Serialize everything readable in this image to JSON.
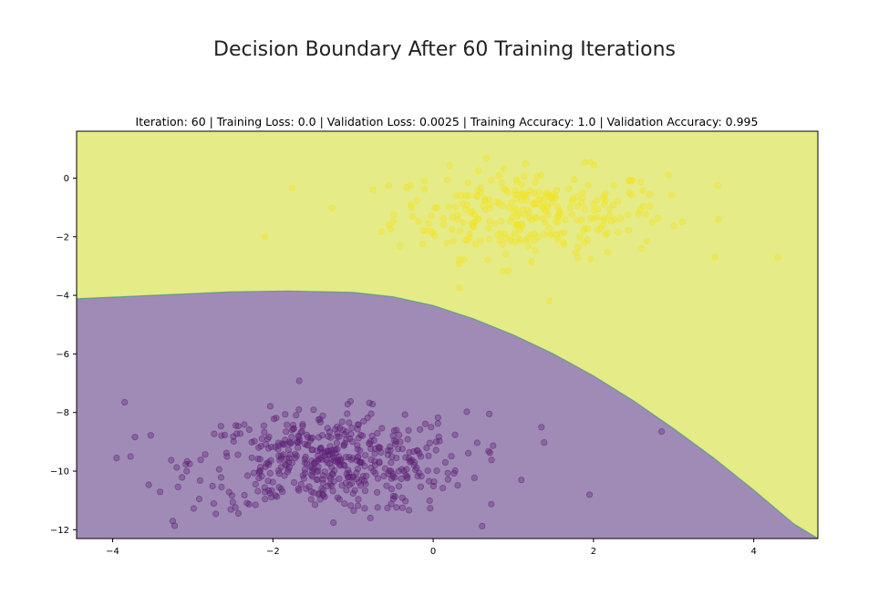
{
  "suptitle": "Decision Boundary After 60 Training Iterations",
  "chart_data": {
    "type": "scatter",
    "title": "Iteration: 60 | Training Loss: 0.0 | Validation Loss: 0.0025 | Training Accuracy: 1.0 | Validation Accuracy: 0.995",
    "xlabel": "",
    "ylabel": "",
    "xlim": [
      -4.45,
      4.8
    ],
    "ylim": [
      -12.3,
      1.6
    ],
    "x_ticks": [
      -4,
      -2,
      0,
      2,
      4
    ],
    "x_tick_labels": [
      "−4",
      "−2",
      "0",
      "2",
      "4"
    ],
    "y_ticks": [
      0,
      -2,
      -4,
      -6,
      -8,
      -10,
      -12
    ],
    "y_tick_labels": [
      "0",
      "−2",
      "−4",
      "−6",
      "−8",
      "−10",
      "−12"
    ],
    "grid": false,
    "legend": "none",
    "decision_boundary": {
      "x": [
        -4.45,
        -3.5,
        -2.5,
        -1.8,
        -1.0,
        -0.5,
        0.0,
        0.5,
        1.0,
        1.5,
        2.0,
        2.5,
        3.0,
        3.5,
        4.0,
        4.5,
        4.8
      ],
      "y": [
        -4.12,
        -4.0,
        -3.88,
        -3.85,
        -3.9,
        -4.05,
        -4.35,
        -4.8,
        -5.35,
        -6.0,
        -6.75,
        -7.6,
        -8.55,
        -9.55,
        -10.65,
        -11.8,
        -12.3
      ]
    },
    "regions": [
      {
        "class": 1,
        "side": "above",
        "color": "#e5eb86"
      },
      {
        "class": 0,
        "side": "below",
        "color": "#a08bb7"
      }
    ],
    "series": [
      {
        "class": 1,
        "color": "#f4e31f",
        "center": [
          1.2,
          -1.2
        ],
        "spread": [
          0.85,
          0.75
        ],
        "n_points": 300,
        "extent_x": [
          -2.1,
          4.3
        ],
        "extent_y": [
          -4.3,
          0.9
        ],
        "outliers": [
          [
            -2.1,
            -2.0
          ],
          [
            4.3,
            -2.7
          ],
          [
            1.45,
            -4.2
          ],
          [
            3.55,
            -0.25
          ]
        ]
      },
      {
        "class": 0,
        "color": "#5c1f74",
        "center": [
          -1.3,
          -9.7
        ],
        "spread": [
          0.85,
          0.85
        ],
        "n_points": 500,
        "extent_x": [
          -3.95,
          2.85
        ],
        "extent_y": [
          -12.0,
          -6.35
        ],
        "outliers": [
          [
            -3.95,
            -9.55
          ],
          [
            2.85,
            -8.65
          ],
          [
            1.95,
            -10.8
          ],
          [
            1.35,
            -8.5
          ],
          [
            0.7,
            -8.05
          ],
          [
            1.1,
            -10.3
          ],
          [
            -3.85,
            -7.65
          ],
          [
            -3.25,
            -11.7
          ]
        ]
      }
    ]
  }
}
